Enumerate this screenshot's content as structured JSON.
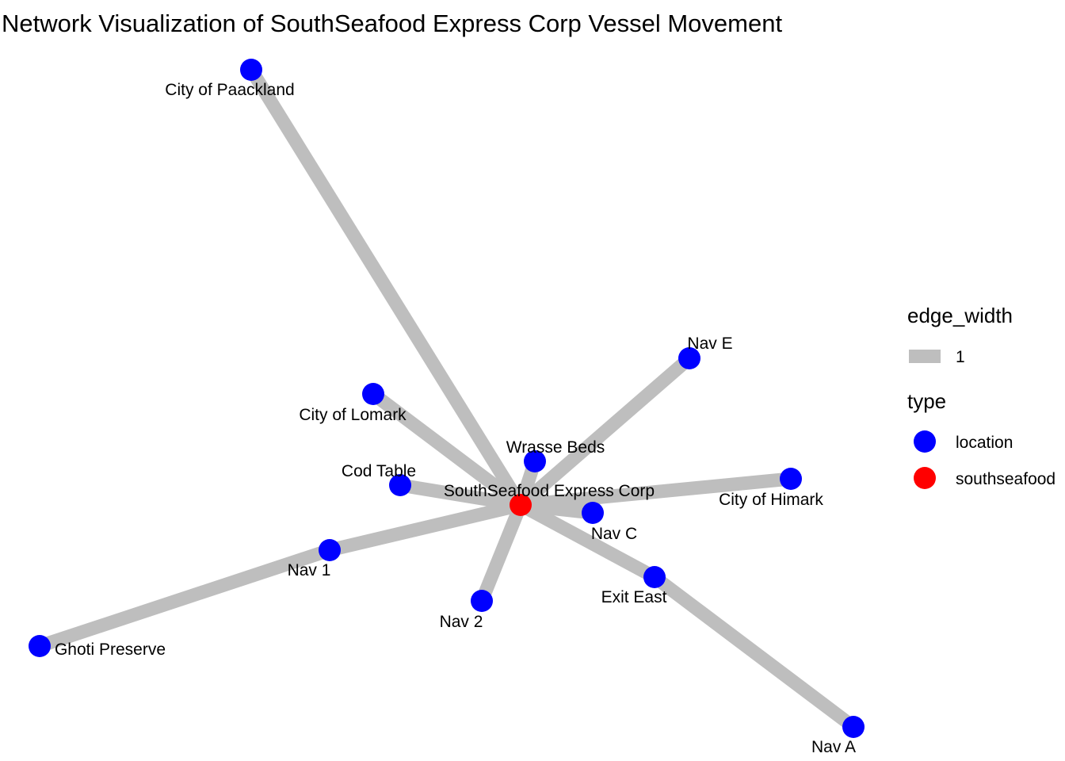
{
  "title": "Network Visualization of SouthSeafood Express Corp Vessel Movement",
  "colors": {
    "edge": "#bebebe",
    "location": "#0000ff",
    "southseafood": "#ff0000",
    "background": "#ffffff"
  },
  "legend": {
    "edge_width": {
      "title": "edge_width",
      "items": [
        {
          "label": "1"
        }
      ]
    },
    "type": {
      "title": "type",
      "items": [
        {
          "label": "location",
          "type": "location"
        },
        {
          "label": "southseafood",
          "type": "southseafood"
        }
      ]
    }
  },
  "nodes": [
    {
      "id": "southseafood-express-corp",
      "label": "SouthSeafood Express Corp",
      "type": "southseafood"
    },
    {
      "id": "city-of-paackland",
      "label": "City of Paackland",
      "type": "location"
    },
    {
      "id": "nav-e",
      "label": "Nav E",
      "type": "location"
    },
    {
      "id": "city-of-lomark",
      "label": "City of Lomark",
      "type": "location"
    },
    {
      "id": "wrasse-beds",
      "label": "Wrasse Beds",
      "type": "location"
    },
    {
      "id": "cod-table",
      "label": "Cod Table",
      "type": "location"
    },
    {
      "id": "city-of-himark",
      "label": "City of Himark",
      "type": "location"
    },
    {
      "id": "nav-c",
      "label": "Nav C",
      "type": "location"
    },
    {
      "id": "nav-1",
      "label": "Nav 1",
      "type": "location"
    },
    {
      "id": "exit-east",
      "label": "Exit East",
      "type": "location"
    },
    {
      "id": "nav-2",
      "label": "Nav 2",
      "type": "location"
    },
    {
      "id": "ghoti-preserve",
      "label": "Ghoti Preserve",
      "type": "location"
    },
    {
      "id": "nav-a",
      "label": "Nav A",
      "type": "location"
    }
  ],
  "edges": [
    {
      "source": "southseafood-express-corp",
      "target": "city-of-paackland",
      "width": 1
    },
    {
      "source": "southseafood-express-corp",
      "target": "nav-e",
      "width": 1
    },
    {
      "source": "southseafood-express-corp",
      "target": "city-of-lomark",
      "width": 1
    },
    {
      "source": "southseafood-express-corp",
      "target": "wrasse-beds",
      "width": 1
    },
    {
      "source": "southseafood-express-corp",
      "target": "cod-table",
      "width": 1
    },
    {
      "source": "southseafood-express-corp",
      "target": "city-of-himark",
      "width": 1
    },
    {
      "source": "southseafood-express-corp",
      "target": "nav-c",
      "width": 1
    },
    {
      "source": "southseafood-express-corp",
      "target": "nav-1",
      "width": 1
    },
    {
      "source": "southseafood-express-corp",
      "target": "exit-east",
      "width": 1
    },
    {
      "source": "southseafood-express-corp",
      "target": "nav-2",
      "width": 1
    },
    {
      "source": "nav-1",
      "target": "ghoti-preserve",
      "width": 1
    },
    {
      "source": "exit-east",
      "target": "nav-a",
      "width": 1
    }
  ]
}
